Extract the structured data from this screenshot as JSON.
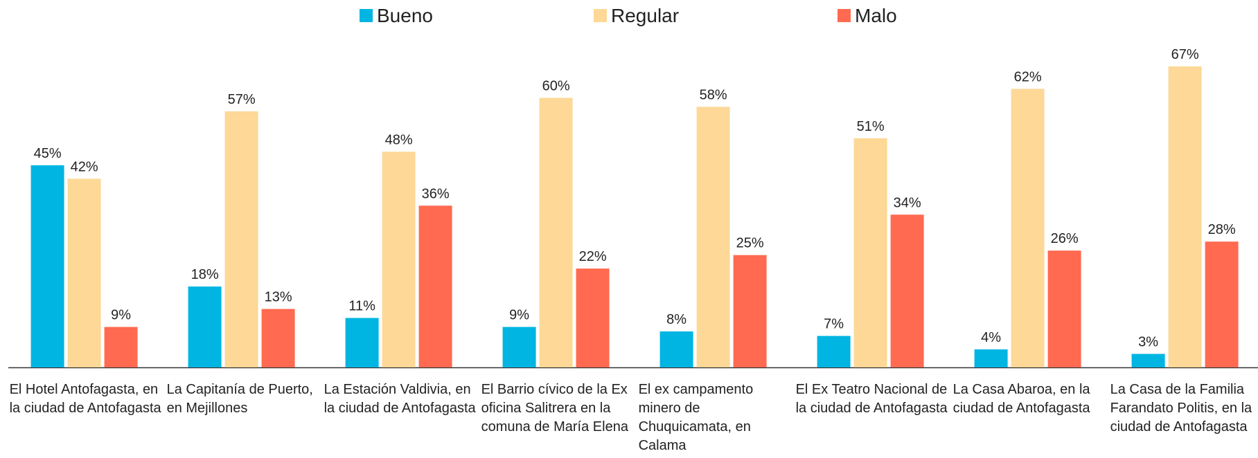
{
  "chart_data": {
    "type": "bar",
    "categories": [
      "El Hotel Antofagasta, en la ciudad de Antofagasta",
      "La Capitanía de Puerto, en Mejillones",
      "La Estación Valdivia, en la ciudad de Antofagasta",
      "El Barrio cívico de la Ex oficina Salitrera en la comuna de María Elena",
      "El ex campamento minero de Chuquicamata, en Calama",
      "El Ex Teatro Nacional de la ciudad de Antofagasta",
      "La Casa Abaroa, en la ciudad de Antofagasta",
      "La Casa de la Familia Farandato Politis, en la ciudad de Antofagasta"
    ],
    "series": [
      {
        "name": "Bueno",
        "color": "#00b5e2",
        "values": [
          45,
          18,
          11,
          9,
          8,
          7,
          4,
          3
        ],
        "value_labels": [
          "45%",
          "18%",
          "11%",
          "9%",
          "8%",
          "7%",
          "4%",
          "3%"
        ]
      },
      {
        "name": "Regular",
        "color": "#fdd897",
        "values": [
          42,
          57,
          48,
          60,
          58,
          51,
          62,
          67
        ],
        "value_labels": [
          "42%",
          "57%",
          "48%",
          "60%",
          "58%",
          "51%",
          "62%",
          "67%"
        ]
      },
      {
        "name": "Malo",
        "color": "#ff6a50",
        "values": [
          9,
          13,
          36,
          22,
          25,
          34,
          26,
          28
        ],
        "value_labels": [
          "9%",
          "13%",
          "36%",
          "22%",
          "25%",
          "34%",
          "26%",
          "28%"
        ]
      }
    ],
    "legend": "top"
  }
}
